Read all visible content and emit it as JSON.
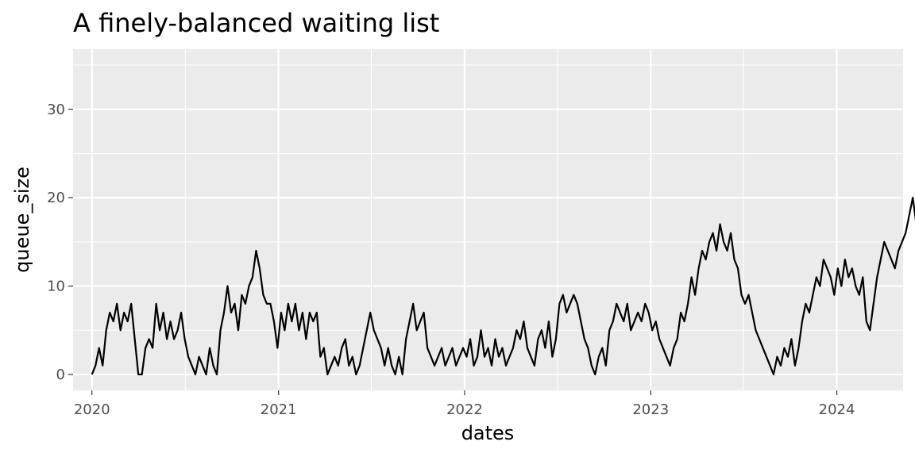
{
  "chart_data": {
    "type": "line",
    "title": "A finely-balanced waiting list",
    "xlabel": "dates",
    "ylabel": "queue_size",
    "x_ticks": [
      "2020",
      "2021",
      "2022",
      "2023",
      "2024"
    ],
    "y_ticks": [
      0,
      10,
      20,
      30
    ],
    "xlim": [
      "2019-11-25",
      "2024-05-10"
    ],
    "ylim": [
      -1.8,
      36.8
    ],
    "grid": true,
    "colors": {
      "panel": "#ebebeb",
      "grid": "#ffffff",
      "line": "#000000"
    },
    "series": [
      {
        "x_start": "2020-01-01",
        "x_step_days": 7,
        "values": [
          0,
          1,
          3,
          1,
          5,
          7,
          6,
          8,
          5,
          7,
          6,
          8,
          4,
          0,
          0,
          3,
          4,
          3,
          8,
          5,
          7,
          4,
          6,
          4,
          5,
          7,
          4,
          2,
          1,
          0,
          2,
          1,
          0,
          3,
          1,
          0,
          5,
          7,
          10,
          7,
          8,
          5,
          9,
          8,
          10,
          11,
          14,
          12,
          9,
          8,
          8,
          6,
          3,
          7,
          5,
          8,
          6,
          8,
          5,
          7,
          4,
          7,
          6,
          7,
          2,
          3,
          0,
          1,
          2,
          1,
          3,
          4,
          1,
          2,
          0,
          1,
          3,
          5,
          7,
          5,
          4,
          3,
          1,
          3,
          1,
          0,
          2,
          0,
          4,
          6,
          8,
          5,
          6,
          7,
          3,
          2,
          1,
          2,
          3,
          1,
          2,
          3,
          1,
          2,
          3,
          2,
          4,
          1,
          2,
          5,
          2,
          3,
          1,
          4,
          2,
          3,
          1,
          2,
          3,
          5,
          4,
          6,
          3,
          2,
          1,
          4,
          5,
          3,
          6,
          2,
          4,
          8,
          9,
          7,
          8,
          9,
          8,
          6,
          4,
          3,
          1,
          0,
          2,
          3,
          1,
          5,
          6,
          8,
          7,
          6,
          8,
          5,
          6,
          7,
          6,
          8,
          7,
          5,
          6,
          4,
          3,
          2,
          1,
          3,
          4,
          7,
          6,
          8,
          11,
          9,
          12,
          14,
          13,
          15,
          16,
          14,
          17,
          15,
          14,
          16,
          13,
          12,
          9,
          8,
          9,
          7,
          5,
          4,
          3,
          2,
          1,
          0,
          2,
          1,
          3,
          2,
          4,
          1,
          3,
          6,
          8,
          7,
          9,
          11,
          10,
          13,
          12,
          11,
          9,
          12,
          10,
          13,
          11,
          12,
          10,
          9,
          11,
          6,
          5,
          8,
          11,
          13,
          15,
          14,
          13,
          12,
          14,
          15,
          16,
          18,
          20,
          17,
          16,
          15,
          14,
          17,
          19,
          18,
          17,
          15,
          14,
          13,
          12,
          10,
          9,
          8,
          6,
          4,
          3,
          1,
          2,
          5,
          6,
          7,
          5,
          4,
          6,
          5,
          4,
          3,
          1,
          0,
          2,
          4,
          6,
          7,
          8,
          6,
          5,
          7,
          6,
          4,
          5,
          3,
          5,
          8,
          12,
          14,
          15,
          16,
          17,
          18,
          16,
          15,
          14,
          13,
          12,
          14,
          13,
          14,
          15,
          16,
          17,
          18,
          19,
          17,
          18,
          19,
          18,
          17,
          19,
          18,
          16,
          17,
          19,
          18,
          20,
          22,
          21,
          22,
          24,
          29,
          30,
          31,
          32,
          33,
          34,
          32,
          31,
          30,
          29,
          31,
          30,
          28,
          27,
          26,
          24,
          23,
          25,
          27,
          28,
          26,
          29,
          31,
          33,
          32,
          34,
          35,
          33,
          31,
          30,
          29,
          31,
          32,
          31,
          28,
          26,
          25,
          27,
          28,
          27,
          29,
          30,
          28,
          29,
          31,
          30,
          27,
          23,
          20,
          19,
          18,
          17,
          16,
          14,
          15,
          16,
          17,
          18,
          16,
          14,
          13,
          15,
          14,
          16,
          18,
          17,
          15,
          14,
          13,
          12,
          11,
          13,
          12,
          10,
          9,
          8,
          6,
          7,
          8,
          9,
          10,
          11,
          12,
          13,
          12,
          11,
          10,
          9,
          8,
          10,
          12,
          14,
          15,
          17,
          18,
          19,
          17,
          16,
          15,
          14,
          13,
          15,
          16,
          17,
          16,
          15,
          14,
          13,
          15,
          14,
          13,
          12,
          13,
          14,
          12,
          11,
          10,
          9,
          8,
          6,
          5,
          4,
          6,
          7,
          9,
          11,
          13,
          15,
          17,
          19,
          21,
          23,
          24,
          26,
          25,
          23,
          22,
          21,
          20,
          19,
          18,
          17,
          16,
          15,
          14,
          12,
          11,
          13,
          15,
          18,
          20,
          22,
          24,
          25,
          24,
          23,
          22,
          21,
          20,
          19,
          21,
          22,
          23,
          24,
          25,
          23,
          22,
          21,
          20,
          19,
          18,
          19,
          20,
          21,
          22,
          21
        ]
      }
    ]
  }
}
